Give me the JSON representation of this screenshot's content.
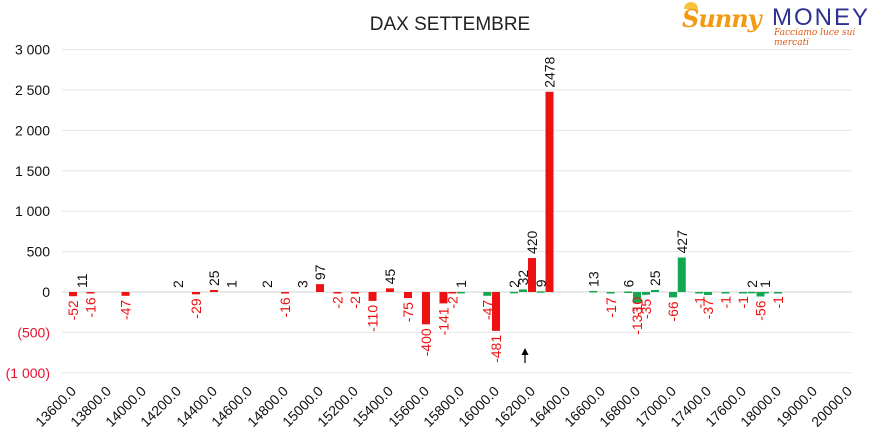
{
  "title": "DAX SETTEMBRE",
  "logo": {
    "brand_left": "Sunny",
    "brand_right": "MONEY",
    "tagline": "Facciamo luce sui mercati"
  },
  "colors": {
    "negative": "#ee1111",
    "positive": "#13a84f",
    "brand_orange": "#f39a12",
    "brand_blue": "#2e3192"
  },
  "chart_data": {
    "type": "bar",
    "title": "DAX SETTEMBRE",
    "y_ticks": [
      "3 000",
      "2 500",
      "2 000",
      "1 500",
      "1 000",
      "500",
      "0",
      "(500)",
      "(1 000)"
    ],
    "ylim": [
      -1000,
      3000
    ],
    "grid": true,
    "categories": [
      "13600.0",
      "13800.0",
      "14000.0",
      "14200.0",
      "14400.0",
      "14600.0",
      "14800.0",
      "15000.0",
      "15200.0",
      "15400.0",
      "15600.0",
      "15800.0",
      "16000.0",
      "16200.0",
      "16400.0",
      "16600.0",
      "16800.0",
      "17000.0",
      "17400.0",
      "17600.0",
      "18000.0",
      "19000.0",
      "20000.0"
    ],
    "series": [
      {
        "color": "red",
        "points": [
          {
            "x": 13600,
            "value": -52
          },
          {
            "x": 13700,
            "value": -16
          },
          {
            "x": 13900,
            "value": -47
          },
          {
            "x": 14300,
            "value": -29
          },
          {
            "x": 14400,
            "value": 25
          },
          {
            "x": 14800,
            "value": -16
          },
          {
            "x": 15000,
            "value": 97
          },
          {
            "x": 15100,
            "value": -2
          },
          {
            "x": 15200,
            "value": -2
          },
          {
            "x": 15300,
            "value": -110
          },
          {
            "x": 15400,
            "value": 45
          },
          {
            "x": 15500,
            "value": -75
          },
          {
            "x": 15600,
            "value": -400
          },
          {
            "x": 15700,
            "value": -141
          },
          {
            "x": 15750,
            "value": -2
          },
          {
            "x": 16000,
            "value": -481
          },
          {
            "x": 16200,
            "value": 420
          },
          {
            "x": 16300,
            "value": 2478
          },
          {
            "x": 16800,
            "value": -10
          }
        ]
      },
      {
        "color": "green",
        "points": [
          {
            "x": 15800,
            "value": 1
          },
          {
            "x": 15950,
            "value": -47
          },
          {
            "x": 16100,
            "value": 2
          },
          {
            "x": 16150,
            "value": 32
          },
          {
            "x": 16250,
            "value": 9
          },
          {
            "x": 16550,
            "value": 13
          },
          {
            "x": 16650,
            "value": -17
          },
          {
            "x": 16750,
            "value": 6
          },
          {
            "x": 16800,
            "value": -133
          },
          {
            "x": 16850,
            "value": -35
          },
          {
            "x": 16900,
            "value": 25
          },
          {
            "x": 17000,
            "value": -66
          },
          {
            "x": 17100,
            "value": 427
          },
          {
            "x": 17300,
            "value": -1
          },
          {
            "x": 17400,
            "value": -37
          },
          {
            "x": 17500,
            "value": -1
          },
          {
            "x": 17600,
            "value": -1
          },
          {
            "x": 17700,
            "value": 2
          },
          {
            "x": 17800,
            "value": -56
          },
          {
            "x": 17850,
            "value": 1
          },
          {
            "x": 18000,
            "value": -1
          }
        ]
      }
    ],
    "other_labels": [
      {
        "x": 13650,
        "value": 11
      },
      {
        "x": 14200,
        "value": 2
      },
      {
        "x": 14500,
        "value": 1
      },
      {
        "x": 14700,
        "value": 2
      },
      {
        "x": 14900,
        "value": 3
      }
    ]
  }
}
